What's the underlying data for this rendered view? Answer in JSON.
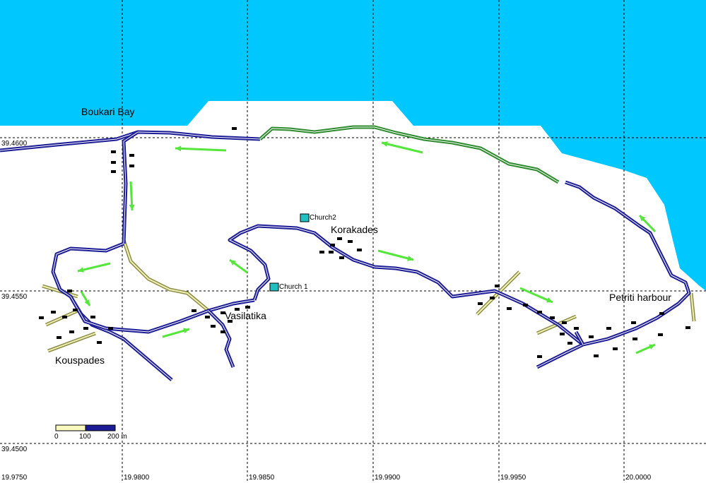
{
  "places": {
    "boukari_bay": "Boukari Bay",
    "korakades": "Korakades",
    "vasilatika": "Vasilatika",
    "kouspades": "Kouspades",
    "petriti_harbour": "Petriti harbour",
    "church2": "Church2",
    "church1": "Church 1"
  },
  "latitudes": [
    "39.4600",
    "39.4550",
    "39.4500"
  ],
  "longitudes": [
    "19.9750",
    "19.9800",
    "19.9850",
    "19.9900",
    "19.9950",
    "20.0000"
  ],
  "scale": {
    "zero": "0",
    "mid": "100",
    "end": "200 m"
  }
}
